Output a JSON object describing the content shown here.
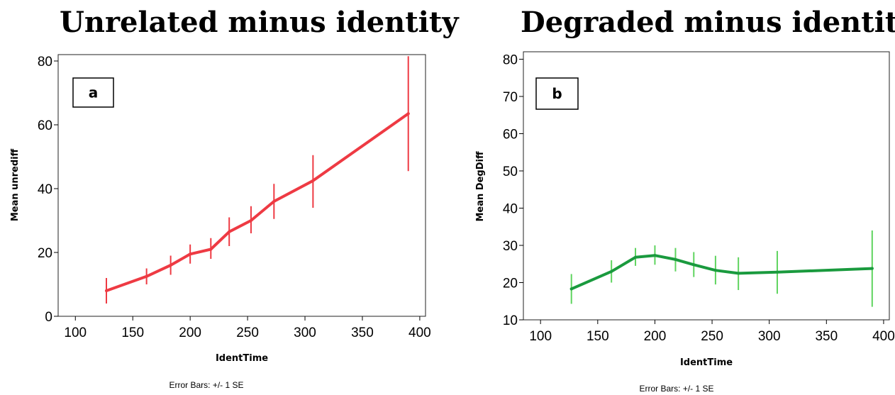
{
  "chart_data": [
    {
      "type": "line",
      "id": "a",
      "title": "Unrelated minus identity",
      "panel_label": "a",
      "xlabel": "IdentTime",
      "ylabel": "Mean unrediff",
      "xlim": [
        85,
        405
      ],
      "ylim": [
        0,
        82
      ],
      "xticks": [
        100,
        150,
        200,
        250,
        300,
        350,
        400
      ],
      "yticks": [
        0,
        20,
        40,
        60,
        80
      ],
      "footnote": "Error Bars: +/- 1 SE",
      "color": "#ee3a43",
      "points": [
        {
          "x": 127,
          "y": 8,
          "lo": 4,
          "hi": 12
        },
        {
          "x": 162,
          "y": 12.5,
          "lo": 10,
          "hi": 15
        },
        {
          "x": 183,
          "y": 16,
          "lo": 13,
          "hi": 19
        },
        {
          "x": 200,
          "y": 19.5,
          "lo": 16.5,
          "hi": 22.5
        },
        {
          "x": 218,
          "y": 21,
          "lo": 18,
          "hi": 24.5
        },
        {
          "x": 234,
          "y": 26.5,
          "lo": 22,
          "hi": 31
        },
        {
          "x": 253,
          "y": 30,
          "lo": 26,
          "hi": 34.5
        },
        {
          "x": 273,
          "y": 36,
          "lo": 30.5,
          "hi": 41.5
        },
        {
          "x": 307,
          "y": 42.5,
          "lo": 34,
          "hi": 50.5
        },
        {
          "x": 390,
          "y": 63.5,
          "lo": 45.5,
          "hi": 81.5
        }
      ]
    },
    {
      "type": "line",
      "id": "b",
      "title": "Degraded minus identity",
      "panel_label": "b",
      "xlabel": "IdentTime",
      "ylabel": "Mean DegDiff",
      "xlim": [
        85,
        405
      ],
      "ylim": [
        10,
        82
      ],
      "xticks": [
        100,
        150,
        200,
        250,
        300,
        350,
        400
      ],
      "yticks": [
        10,
        20,
        30,
        40,
        50,
        60,
        70,
        80
      ],
      "footnote": "Error Bars: +/- 1 SE",
      "color": "#1a9a3e",
      "errcolor": "#5fd45f",
      "points": [
        {
          "x": 127,
          "y": 18.3,
          "lo": 14.3,
          "hi": 22.3
        },
        {
          "x": 162,
          "y": 23,
          "lo": 20,
          "hi": 26
        },
        {
          "x": 183,
          "y": 26.8,
          "lo": 24.5,
          "hi": 29.3
        },
        {
          "x": 200,
          "y": 27.3,
          "lo": 24.8,
          "hi": 30
        },
        {
          "x": 218,
          "y": 26.2,
          "lo": 23,
          "hi": 29.3
        },
        {
          "x": 234,
          "y": 24.8,
          "lo": 21.5,
          "hi": 28.2
        },
        {
          "x": 253,
          "y": 23.3,
          "lo": 19.5,
          "hi": 27.2
        },
        {
          "x": 273,
          "y": 22.5,
          "lo": 18,
          "hi": 26.8
        },
        {
          "x": 307,
          "y": 22.8,
          "lo": 17,
          "hi": 28.5
        },
        {
          "x": 390,
          "y": 23.8,
          "lo": 13.5,
          "hi": 34
        }
      ]
    }
  ]
}
